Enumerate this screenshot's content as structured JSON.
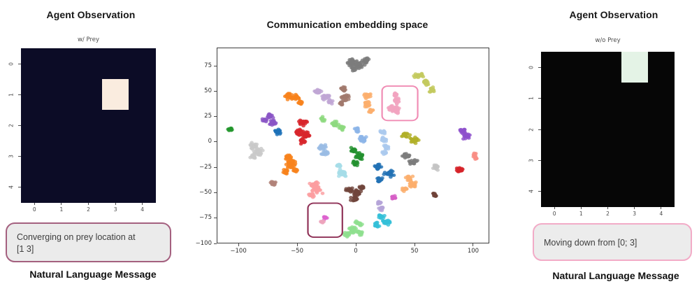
{
  "panels": {
    "left": {
      "title": "Agent Observation",
      "subtitle": "w/ Prey",
      "message": "Converging on prey location at\n[1 3]",
      "caption": "Natural Language Message",
      "colors": {
        "border": "#a4607f",
        "box_bg": "#ebebeb"
      }
    },
    "center": {
      "title": "Communication embedding space"
    },
    "right": {
      "title": "Agent Observation",
      "subtitle": "w/o Prey",
      "message": "Moving down from [0; 3]",
      "caption": "Natural Language Message",
      "colors": {
        "border": "#f2abc7",
        "box_bg": "#ececec"
      }
    }
  },
  "chart_data": [
    {
      "type": "heatmap",
      "title": "w/ Prey",
      "rows": 5,
      "cols": 5,
      "x_ticks": [
        "0",
        "1",
        "2",
        "3",
        "4"
      ],
      "y_ticks": [
        "0",
        "1",
        "2",
        "3",
        "4"
      ],
      "palette": {
        "low": "#0c0c26",
        "high": "#faecdf"
      },
      "values_note": "all cells 0 except highlight = 1",
      "highlight": {
        "row": 1,
        "col": 3
      }
    },
    {
      "type": "scatter",
      "title": "Communication embedding space",
      "xlim": [
        -118.5,
        113.7
      ],
      "ylim": [
        -100,
        93
      ],
      "x_tick_values": [
        -100,
        -50,
        0,
        50,
        100
      ],
      "x_tick_labels": [
        "−100",
        "−50",
        "0",
        "50",
        "100"
      ],
      "y_tick_values": [
        75,
        50,
        25,
        0,
        -25,
        -50,
        -75,
        -100
      ],
      "y_tick_labels": [
        "75",
        "50",
        "25",
        "0",
        "−25",
        "−50",
        "−75",
        "−100"
      ],
      "point_radius": 1.7,
      "clusters": [
        {
          "name": "gray-top",
          "color": "#7d7d7d",
          "lobes": [
            [
              -4,
              79,
              5,
              4
            ],
            [
              3,
              77,
              5,
              4.5
            ],
            [
              9,
              81,
              3.5,
              3
            ],
            [
              -1,
              73,
              3,
              2.5
            ]
          ]
        },
        {
          "name": "khaki-top-right",
          "color": "#c3c95e",
          "lobes": [
            [
              54,
              66,
              4.5,
              3
            ],
            [
              60,
              59,
              3,
              3
            ],
            [
              65,
              52,
              2.5,
              3
            ]
          ]
        },
        {
          "name": "pink-boxed",
          "color": "#f2a3c0",
          "lobes": [
            [
              34,
              48,
              3,
              2.5
            ],
            [
              35,
              41,
              3,
              3.5
            ],
            [
              33,
              32,
              5.5,
              4.5
            ]
          ]
        },
        {
          "name": "sandy-orange",
          "color": "#fbae6d",
          "lobes": [
            [
              10,
              46,
              3.5,
              3
            ],
            [
              10,
              38,
              3.5,
              4
            ],
            [
              13,
              31,
              2.5,
              2.5
            ]
          ]
        },
        {
          "name": "brown-top",
          "color": "#a1796d",
          "lobes": [
            [
              -11,
              52,
              3,
              3
            ],
            [
              -9,
              44,
              3.5,
              4
            ],
            [
              -13,
              38,
              2,
              2
            ]
          ]
        },
        {
          "name": "plum",
          "color": "#c0a6d4",
          "lobes": [
            [
              -32,
              50,
              4,
              3
            ],
            [
              -26,
              45,
              4,
              3.5
            ],
            [
              -22,
              40,
              2.5,
              2.5
            ]
          ]
        },
        {
          "name": "orange-top",
          "color": "#f8821c",
          "lobes": [
            [
              -58,
              45,
              4,
              3.5
            ],
            [
              -52,
              44,
              4,
              3.5
            ],
            [
              -47,
              39,
              2.5,
              2.5
            ]
          ]
        },
        {
          "name": "purple-left",
          "color": "#8a56c6",
          "lobes": [
            [
              -74,
              25,
              4,
              3
            ],
            [
              -71,
              19,
              3.5,
              3.5
            ],
            [
              -78,
              21,
              2,
              2
            ]
          ]
        },
        {
          "name": "green-dot-left",
          "color": "#22962c",
          "lobes": [
            [
              -108,
              13,
              2.2,
              2.2
            ]
          ]
        },
        {
          "name": "blue-dot",
          "color": "#1d72b8",
          "lobes": [
            [
              -67,
              10,
              3.5,
              3
            ]
          ]
        },
        {
          "name": "red-big",
          "color": "#d8262c",
          "lobes": [
            [
              -45,
              19,
              4,
              4
            ],
            [
              -48,
              10,
              4,
              4
            ],
            [
              -42,
              7,
              4,
              4
            ],
            [
              -46,
              1,
              3,
              3
            ]
          ]
        },
        {
          "name": "light-green-mid",
          "color": "#8ed97f",
          "lobes": [
            [
              -28,
              23,
              2.5,
              2.5
            ],
            [
              -18,
              18,
              4,
              3
            ],
            [
              -12,
              14,
              3,
              3
            ]
          ]
        },
        {
          "name": "cornflower-pair",
          "color": "#8cb4e8",
          "lobes": [
            [
              1,
              12,
              3,
              2.5
            ],
            [
              6,
              3,
              3.5,
              3.5
            ]
          ]
        },
        {
          "name": "lightblue-string",
          "color": "#abc9ee",
          "lobes": [
            [
              23,
              10,
              2.5,
              2
            ],
            [
              24,
              3,
              3,
              3
            ],
            [
              26,
              -5,
              3,
              3
            ],
            [
              24,
              -11,
              2,
              2
            ]
          ]
        },
        {
          "name": "olive",
          "color": "#b1b028",
          "lobes": [
            [
              43,
              7,
              4,
              3
            ],
            [
              50,
              2,
              4,
              3.5
            ]
          ]
        },
        {
          "name": "purple-right",
          "color": "#8e51cc",
          "lobes": [
            [
              92,
              11,
              3,
              3
            ],
            [
              95,
              6,
              3.5,
              3.5
            ]
          ]
        },
        {
          "name": "lightgray-left",
          "color": "#c9c9c9",
          "lobes": [
            [
              -87,
              -4,
              4,
              3.5
            ],
            [
              -83,
              -10,
              4.5,
              4
            ],
            [
              -88,
              -14,
              2.5,
              2.5
            ]
          ]
        },
        {
          "name": "cornflower-mid",
          "color": "#9abce4",
          "lobes": [
            [
              -29,
              -5,
              4,
              3
            ],
            [
              -26,
              -11,
              3.5,
              3
            ]
          ]
        },
        {
          "name": "green-center",
          "color": "#23912f",
          "lobes": [
            [
              -2,
              -8,
              3,
              3
            ],
            [
              3,
              -14,
              4,
              4
            ],
            [
              0,
              -21,
              3,
              3
            ]
          ]
        },
        {
          "name": "gray-right",
          "color": "#7c7c7c",
          "lobes": [
            [
              43,
              -14,
              4,
              3
            ],
            [
              49,
              -20,
              4,
              3
            ]
          ]
        },
        {
          "name": "salmon-right-edge",
          "color": "#f98d85",
          "lobes": [
            [
              102,
              -14,
              2.5,
              3.5
            ]
          ]
        },
        {
          "name": "orange-bottom-left",
          "color": "#f8821c",
          "lobes": [
            [
              -58,
              -15,
              4,
              3
            ],
            [
              -55,
              -22,
              5,
              4.5
            ],
            [
              -60,
              -30,
              3,
              3
            ],
            [
              -51,
              -28,
              2.5,
              2.5
            ]
          ]
        },
        {
          "name": "pale-cyan",
          "color": "#a6dde8",
          "lobes": [
            [
              -14,
              -23,
              2.5,
              2
            ],
            [
              -12,
              -31,
              4.5,
              4
            ]
          ]
        },
        {
          "name": "blue-bottom",
          "color": "#2272b4",
          "lobes": [
            [
              19,
              -25,
              3.5,
              3
            ],
            [
              28,
              -31,
              5,
              4
            ],
            [
              21,
              -38,
              3.5,
              3
            ]
          ]
        },
        {
          "name": "lightgray-small",
          "color": "#c4c4c4",
          "lobes": [
            [
              69,
              -25,
              3.5,
              3
            ]
          ]
        },
        {
          "name": "red-small",
          "color": "#d62228",
          "lobes": [
            [
              89,
              -28,
              3.5,
              3
            ]
          ]
        },
        {
          "name": "rosy-small",
          "color": "#b18379",
          "lobes": [
            [
              -71,
              -41,
              3,
              2.5
            ]
          ]
        },
        {
          "name": "salmon-big",
          "color": "#fb9da0",
          "lobes": [
            [
              -36,
              -42,
              4,
              3.5
            ],
            [
              -33,
              -48,
              5,
              4
            ],
            [
              -38,
              -53,
              3,
              3
            ]
          ]
        },
        {
          "name": "light-orange-right",
          "color": "#fbae6d",
          "lobes": [
            [
              46,
              -36,
              3.5,
              3
            ],
            [
              48,
              -43,
              4.5,
              4
            ],
            [
              42,
              -47,
              2.5,
              2.5
            ]
          ]
        },
        {
          "name": "dark-brown-center",
          "color": "#70453c",
          "lobes": [
            [
              -6,
              -48,
              3.5,
              3
            ],
            [
              1,
              -50,
              4,
              3.5
            ],
            [
              -2,
              -57,
              3.5,
              3
            ],
            [
              5,
              -45,
              2.5,
              2.5
            ]
          ]
        },
        {
          "name": "orchid-dot",
          "color": "#d55ec6",
          "lobes": [
            [
              32,
              -55,
              2.5,
              2.5
            ]
          ]
        },
        {
          "name": "dark-brown-small",
          "color": "#6f4238",
          "lobes": [
            [
              68,
              -52,
              2.5,
              2.5
            ]
          ]
        },
        {
          "name": "purple-small",
          "color": "#b4a3d8",
          "lobes": [
            [
              20,
              -60,
              2,
              2.5
            ],
            [
              22,
              -66,
              2.5,
              3
            ]
          ]
        },
        {
          "name": "turquoise",
          "color": "#35c0d8",
          "lobes": [
            [
              22,
              -74,
              3,
              2.5
            ],
            [
              26,
              -80,
              4,
              3.5
            ],
            [
              18,
              -82,
              2.5,
              2.5
            ]
          ]
        },
        {
          "name": "light-green-bottom",
          "color": "#8fdf8f",
          "lobes": [
            [
              2,
              -81,
              3.5,
              3
            ],
            [
              -2,
              -87,
              4.5,
              4
            ],
            [
              -8,
              -92,
              3,
              2.5
            ],
            [
              4,
              -90,
              3,
              3
            ]
          ]
        },
        {
          "name": "magenta-boxed",
          "color": "#dd63ce",
          "lobes": [
            [
              -26,
              -75,
              2,
              2.2
            ]
          ]
        },
        {
          "name": "pink-boxed-small",
          "color": "#eda3bc",
          "lobes": [
            [
              -28.5,
              -79.5,
              1.8,
              1.8
            ]
          ]
        }
      ],
      "annotation_boxes": [
        {
          "x0": 22.5,
          "y0": 21.3,
          "x1": 53.0,
          "y1": 55.5,
          "color": "#f08cb4",
          "stroke": 1.3,
          "radius": 4.8
        },
        {
          "x0": -41.0,
          "y0": -94.5,
          "x1": -11.5,
          "y1": -60.7,
          "color": "#8f3157",
          "stroke": 1.3,
          "radius": 5
        }
      ]
    },
    {
      "type": "heatmap",
      "title": "w/o Prey",
      "rows": 5,
      "cols": 5,
      "x_ticks": [
        "0",
        "1",
        "2",
        "3",
        "4"
      ],
      "y_ticks": [
        "0",
        "1",
        "2",
        "3",
        "4"
      ],
      "palette": {
        "low": "#060606",
        "high": "#e4f3e6"
      },
      "values_note": "all cells 0 except highlight = 1",
      "highlight": {
        "row": 0,
        "col": 3
      }
    }
  ]
}
